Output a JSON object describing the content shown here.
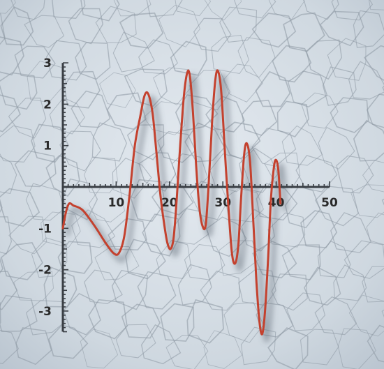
{
  "chart_data": {
    "type": "line",
    "title": "",
    "xlabel": "",
    "ylabel": "",
    "xlim": [
      0,
      50
    ],
    "ylim": [
      -3.5,
      3
    ],
    "x_ticks": [
      {
        "value": 10,
        "label": "10"
      },
      {
        "value": 20,
        "label": "20"
      },
      {
        "value": 30,
        "label": "30"
      },
      {
        "value": 40,
        "label": "40"
      },
      {
        "value": 50,
        "label": "50"
      }
    ],
    "y_ticks": [
      {
        "value": 3,
        "label": "3"
      },
      {
        "value": 2,
        "label": "2"
      },
      {
        "value": 1,
        "label": "1"
      },
      {
        "value": -1,
        "label": "-1"
      },
      {
        "value": -2,
        "label": "-2"
      },
      {
        "value": -3,
        "label": "-3"
      }
    ],
    "grid": false,
    "series": [
      {
        "color": "#c4412e",
        "points": [
          [
            0.0,
            -1.0
          ],
          [
            0.6,
            -0.6
          ],
          [
            1.2,
            -0.4
          ],
          [
            2.0,
            -0.45
          ],
          [
            3.0,
            -0.5
          ],
          [
            4.0,
            -0.6
          ],
          [
            6.0,
            -0.95
          ],
          [
            8.0,
            -1.35
          ],
          [
            9.5,
            -1.6
          ],
          [
            10.5,
            -1.6
          ],
          [
            11.5,
            -1.2
          ],
          [
            12.5,
            -0.2
          ],
          [
            13.5,
            1.0
          ],
          [
            14.5,
            1.7
          ],
          [
            15.3,
            2.2
          ],
          [
            16.0,
            2.25
          ],
          [
            16.8,
            1.8
          ],
          [
            17.5,
            0.9
          ],
          [
            18.3,
            -0.2
          ],
          [
            19.0,
            -0.9
          ],
          [
            19.6,
            -1.35
          ],
          [
            20.2,
            -1.5
          ],
          [
            20.8,
            -1.2
          ],
          [
            21.4,
            -0.2
          ],
          [
            22.0,
            1.0
          ],
          [
            22.7,
            2.2
          ],
          [
            23.3,
            2.75
          ],
          [
            23.8,
            2.7
          ],
          [
            24.4,
            1.8
          ],
          [
            25.0,
            0.5
          ],
          [
            25.6,
            -0.5
          ],
          [
            26.2,
            -0.95
          ],
          [
            26.8,
            -0.9
          ],
          [
            27.4,
            0.2
          ],
          [
            28.0,
            1.6
          ],
          [
            28.6,
            2.6
          ],
          [
            29.1,
            2.8
          ],
          [
            29.7,
            2.3
          ],
          [
            30.4,
            0.8
          ],
          [
            31.1,
            -0.6
          ],
          [
            31.7,
            -1.6
          ],
          [
            32.3,
            -1.85
          ],
          [
            32.9,
            -1.4
          ],
          [
            33.4,
            -0.3
          ],
          [
            34.0,
            0.8
          ],
          [
            34.5,
            1.05
          ],
          [
            35.1,
            0.6
          ],
          [
            35.7,
            -0.8
          ],
          [
            36.3,
            -2.3
          ],
          [
            36.9,
            -3.3
          ],
          [
            37.4,
            -3.55
          ],
          [
            37.9,
            -3.0
          ],
          [
            38.5,
            -1.7
          ],
          [
            39.0,
            -0.3
          ],
          [
            39.6,
            0.5
          ],
          [
            40.0,
            0.65
          ],
          [
            40.4,
            0.4
          ],
          [
            40.8,
            -0.4
          ]
        ]
      }
    ]
  }
}
